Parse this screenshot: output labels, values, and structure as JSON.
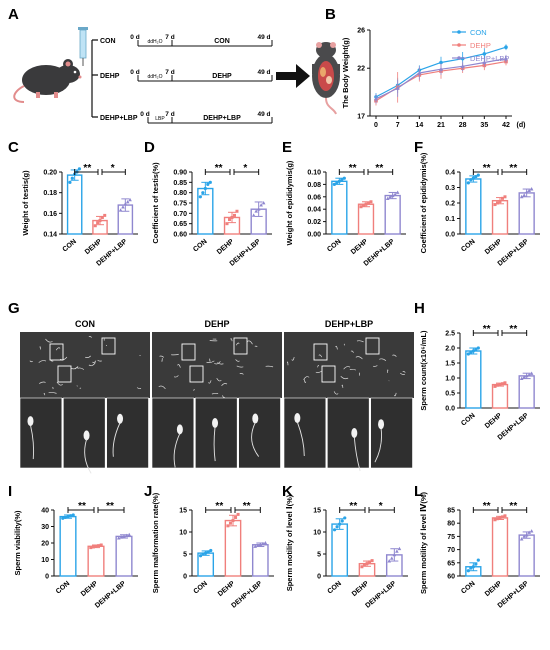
{
  "panel_letters": [
    "A",
    "B",
    "C",
    "D",
    "E",
    "F",
    "G",
    "H",
    "I",
    "J",
    "K",
    "L"
  ],
  "colors": {
    "con": "#2aa4e8",
    "dehp": "#f07f7c",
    "lbp": "#8f87cf",
    "black": "#111111"
  },
  "schematic": {
    "groups": [
      {
        "name": "CON",
        "start": "0 d",
        "ddh2o": "ddH₂O",
        "mid": "7 d",
        "seg_label": "CON",
        "end": "49 d"
      },
      {
        "name": "DEHP",
        "start": "0 d",
        "ddh2o": "ddH₂O",
        "mid": "7 d",
        "seg_label": "DEHP",
        "end": "49 d"
      },
      {
        "name": "DEHP+LBP",
        "start": "0 d",
        "ddh2o": "LBP",
        "mid": "7 d",
        "seg_label": "DEHP+LBP",
        "end": "49 d"
      }
    ]
  },
  "micrograph": {
    "titles": [
      "CON",
      "DEHP",
      "DEHP+LBP"
    ],
    "icon": "sperm-smear-micrograph"
  },
  "chart_data": [
    {
      "id": "B",
      "type": "line",
      "ylabel": "The Body Weight(g)",
      "xunit": "(d)",
      "x": [
        0,
        7,
        14,
        21,
        28,
        35,
        42
      ],
      "ylim": [
        17,
        26
      ],
      "yticks": [
        17,
        22,
        26
      ],
      "series": [
        {
          "name": "CON",
          "values": [
            19.0,
            20.2,
            21.8,
            22.6,
            23.0,
            23.5,
            24.2
          ],
          "err": [
            0.4,
            0.8,
            0.5,
            0.6,
            0.7,
            0.6,
            0.3
          ],
          "marker": "circle"
        },
        {
          "name": "DEHP",
          "values": [
            18.6,
            20.0,
            21.3,
            21.7,
            22.0,
            22.3,
            22.7
          ],
          "err": [
            0.5,
            1.6,
            0.7,
            0.8,
            0.5,
            0.5,
            0.4
          ],
          "marker": "square"
        },
        {
          "name": "DEHP+LBP",
          "values": [
            18.8,
            19.9,
            21.5,
            21.9,
            22.2,
            22.6,
            23.0
          ],
          "err": [
            0.5,
            0.9,
            0.7,
            0.6,
            0.5,
            0.4,
            0.4
          ],
          "marker": "triangle"
        }
      ]
    },
    {
      "id": "C",
      "type": "bar",
      "ylabel": "Weight of testis(g)",
      "categories": [
        "CON",
        "DEHP",
        "DEHP+LBP"
      ],
      "ylim": [
        0.14,
        0.2
      ],
      "yticks": [
        "0.14",
        "0.16",
        "0.18",
        "0.20"
      ],
      "values": [
        0.197,
        0.153,
        0.168
      ],
      "err": [
        0.005,
        0.004,
        0.006
      ],
      "points": [
        [
          0.19,
          0.194,
          0.198,
          0.2,
          0.203
        ],
        [
          0.148,
          0.151,
          0.153,
          0.156,
          0.158
        ],
        [
          0.163,
          0.166,
          0.169,
          0.171,
          0.173
        ]
      ],
      "sig": [
        "**",
        "*"
      ]
    },
    {
      "id": "D",
      "type": "bar",
      "ylabel": "Coefficient of testis(%)",
      "categories": [
        "CON",
        "DEHP",
        "DEHP+LBP"
      ],
      "ylim": [
        0.6,
        0.9
      ],
      "yticks": [
        "0.60",
        "0.65",
        "0.70",
        "0.75",
        "0.80",
        "0.85",
        "0.90"
      ],
      "values": [
        0.82,
        0.68,
        0.72
      ],
      "err": [
        0.03,
        0.025,
        0.035
      ],
      "points": [
        [
          0.78,
          0.8,
          0.82,
          0.84,
          0.85
        ],
        [
          0.65,
          0.67,
          0.68,
          0.69,
          0.71
        ],
        [
          0.69,
          0.71,
          0.72,
          0.74,
          0.75
        ]
      ],
      "sig": [
        "**",
        "*"
      ]
    },
    {
      "id": "E",
      "type": "bar",
      "ylabel": "Weight of epididymis(g)",
      "categories": [
        "CON",
        "DEHP",
        "DEHP+LBP"
      ],
      "ylim": [
        0.0,
        0.1
      ],
      "yticks": [
        "0.00",
        "0.02",
        "0.04",
        "0.06",
        "0.08",
        "0.10"
      ],
      "values": [
        0.085,
        0.048,
        0.062
      ],
      "err": [
        0.005,
        0.004,
        0.005
      ],
      "points": [
        [
          0.08,
          0.083,
          0.085,
          0.088,
          0.09
        ],
        [
          0.044,
          0.046,
          0.048,
          0.05,
          0.052
        ],
        [
          0.057,
          0.06,
          0.062,
          0.064,
          0.067
        ]
      ],
      "sig": [
        "**",
        "**"
      ]
    },
    {
      "id": "F",
      "type": "bar",
      "ylabel": "Coefficient of epididymis(%)",
      "categories": [
        "CON",
        "DEHP",
        "DEHP+LBP"
      ],
      "ylim": [
        0.0,
        0.4
      ],
      "yticks": [
        "0.0",
        "0.1",
        "0.2",
        "0.3",
        "0.4"
      ],
      "values": [
        0.355,
        0.215,
        0.265
      ],
      "err": [
        0.02,
        0.02,
        0.025
      ],
      "points": [
        [
          0.33,
          0.35,
          0.36,
          0.37,
          0.38
        ],
        [
          0.19,
          0.2,
          0.21,
          0.23,
          0.24
        ],
        [
          0.24,
          0.25,
          0.27,
          0.28,
          0.29
        ]
      ],
      "sig": [
        "**",
        "**"
      ]
    },
    {
      "id": "H",
      "type": "bar",
      "ylabel": "Sperm count(x10⁶/mL)",
      "categories": [
        "CON",
        "DEHP",
        "DEHP+LBP"
      ],
      "ylim": [
        0.0,
        2.5
      ],
      "yticks": [
        "0.0",
        "0.5",
        "1.0",
        "1.5",
        "2.0",
        "2.5"
      ],
      "values": [
        1.9,
        0.78,
        1.07
      ],
      "err": [
        0.1,
        0.05,
        0.09
      ],
      "points": [
        [
          1.8,
          1.85,
          1.9,
          1.95,
          2.0
        ],
        [
          0.72,
          0.76,
          0.78,
          0.81,
          0.84
        ],
        [
          0.98,
          1.03,
          1.07,
          1.11,
          1.15
        ]
      ],
      "sig": [
        "**",
        "**"
      ]
    },
    {
      "id": "I",
      "type": "bar",
      "ylabel": "Sperm viability(%)",
      "categories": [
        "CON",
        "DEHP",
        "DEHP+LBP"
      ],
      "ylim": [
        0,
        40
      ],
      "yticks": [
        "0",
        "10",
        "20",
        "30",
        "40"
      ],
      "values": [
        36,
        18,
        24
      ],
      "err": [
        1,
        0.8,
        1
      ],
      "points": [
        [
          35,
          35.5,
          36,
          36.5,
          37
        ],
        [
          17.2,
          17.6,
          18,
          18.4,
          18.8
        ],
        [
          23,
          23.5,
          24,
          24.5,
          25
        ]
      ],
      "sig": [
        "**",
        "**"
      ]
    },
    {
      "id": "J",
      "type": "bar",
      "ylabel": "Sperm malformation rate(%)",
      "categories": [
        "CON",
        "DEHP",
        "DEHP+LBP"
      ],
      "ylim": [
        0,
        15
      ],
      "yticks": [
        "0",
        "5",
        "10",
        "15"
      ],
      "values": [
        5.2,
        12.6,
        7.1
      ],
      "err": [
        0.5,
        1.2,
        0.4
      ],
      "points": [
        [
          4.6,
          5.0,
          5.2,
          5.5,
          5.8
        ],
        [
          11.4,
          12.0,
          12.6,
          13.3,
          14.0
        ],
        [
          6.7,
          6.9,
          7.1,
          7.3,
          7.5
        ]
      ],
      "sig": [
        "**",
        "**"
      ]
    },
    {
      "id": "K",
      "type": "bar",
      "ylabel": "Sperm motility of level Ⅰ(%)",
      "categories": [
        "CON",
        "DEHP",
        "DEHP+LBP"
      ],
      "ylim": [
        0,
        15
      ],
      "yticks": [
        "0",
        "5",
        "10",
        "15"
      ],
      "values": [
        11.8,
        2.8,
        4.8
      ],
      "err": [
        1.2,
        0.6,
        1.4
      ],
      "points": [
        [
          10.5,
          11.2,
          11.8,
          12.5,
          13.2
        ],
        [
          2.1,
          2.5,
          2.8,
          3.2,
          3.5
        ],
        [
          3.4,
          4.0,
          4.8,
          5.6,
          6.2
        ]
      ],
      "sig": [
        "**",
        "*"
      ]
    },
    {
      "id": "L",
      "type": "bar",
      "ylabel": "Sperm motility of level Ⅳ(%)",
      "categories": [
        "CON",
        "DEHP",
        "DEHP+LBP"
      ],
      "ylim": [
        60,
        85
      ],
      "yticks": [
        "60",
        "65",
        "70",
        "75",
        "80",
        "85"
      ],
      "values": [
        63.5,
        82,
        75.5
      ],
      "err": [
        1.5,
        0.6,
        1.2
      ],
      "points": [
        [
          62,
          63,
          63.5,
          64.5,
          66
        ],
        [
          81.3,
          81.7,
          82,
          82.4,
          82.8
        ],
        [
          74,
          75,
          75.5,
          76.5,
          77
        ]
      ],
      "sig": [
        "**",
        "**"
      ]
    }
  ]
}
